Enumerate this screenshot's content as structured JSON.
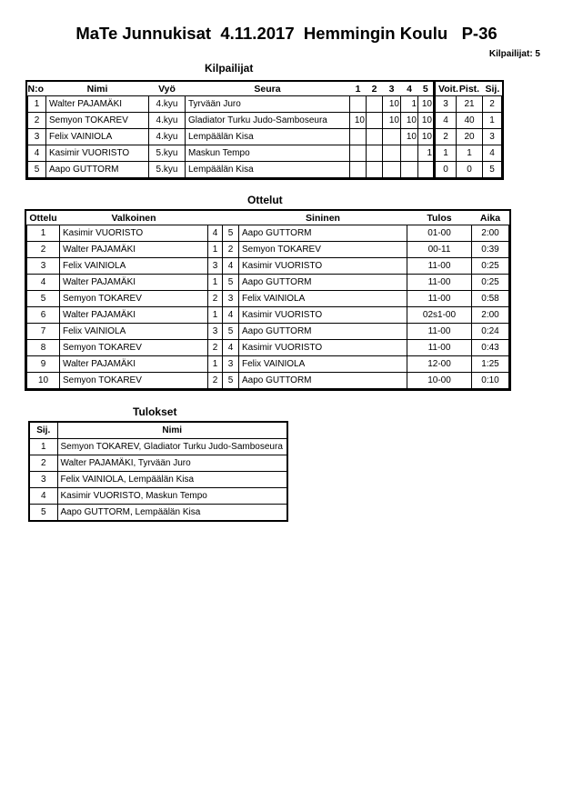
{
  "title": "MaTe Junnukisat  4.11.2017  Hemmingin Koulu   P-36",
  "competitor_count": "Kilpailijat: 5",
  "competitors": {
    "heading": "Kilpailijat",
    "headers": [
      "N:o",
      "Nimi",
      "Vyö",
      "Seura",
      "1",
      "2",
      "3",
      "4",
      "5",
      "Voit.",
      "Pist.",
      "Sij."
    ],
    "rows": [
      {
        "no": "1",
        "name": "Walter PAJAMÄKI",
        "belt": "4.kyu",
        "club": "Tyrvään Juro",
        "s1": "",
        "s2": "",
        "s3": "10",
        "s4": "1",
        "s5": "10",
        "wins": "3",
        "points": "21",
        "rank": "2"
      },
      {
        "no": "2",
        "name": "Semyon TOKAREV",
        "belt": "4.kyu",
        "club": "Gladiator Turku Judo-Samboseura",
        "s1": "10",
        "s2": "",
        "s3": "10",
        "s4": "10",
        "s5": "10",
        "wins": "4",
        "points": "40",
        "rank": "1"
      },
      {
        "no": "3",
        "name": "Felix VAINIOLA",
        "belt": "4.kyu",
        "club": "Lempäälän Kisa",
        "s1": "",
        "s2": "",
        "s3": "",
        "s4": "10",
        "s5": "10",
        "wins": "2",
        "points": "20",
        "rank": "3"
      },
      {
        "no": "4",
        "name": "Kasimir VUORISTO",
        "belt": "5.kyu",
        "club": "Maskun Tempo",
        "s1": "",
        "s2": "",
        "s3": "",
        "s4": "",
        "s5": "1",
        "wins": "1",
        "points": "1",
        "rank": "4"
      },
      {
        "no": "5",
        "name": "Aapo GUTTORM",
        "belt": "5.kyu",
        "club": "Lempäälän Kisa",
        "s1": "",
        "s2": "",
        "s3": "",
        "s4": "",
        "s5": "",
        "wins": "0",
        "points": "0",
        "rank": "5"
      }
    ]
  },
  "matches": {
    "heading": "Ottelut",
    "headers": [
      "Ottelu",
      "Valkoinen",
      "Sininen",
      "Tulos",
      "Aika"
    ],
    "rows": [
      {
        "no": "1",
        "white": "Kasimir VUORISTO",
        "wn": "4",
        "bn": "5",
        "blue": "Aapo GUTTORM",
        "result": "01-00",
        "time": "2:00"
      },
      {
        "no": "2",
        "white": "Walter PAJAMÄKI",
        "wn": "1",
        "bn": "2",
        "blue": "Semyon TOKAREV",
        "result": "00-11",
        "time": "0:39"
      },
      {
        "no": "3",
        "white": "Felix VAINIOLA",
        "wn": "3",
        "bn": "4",
        "blue": "Kasimir VUORISTO",
        "result": "11-00",
        "time": "0:25"
      },
      {
        "no": "4",
        "white": "Walter PAJAMÄKI",
        "wn": "1",
        "bn": "5",
        "blue": "Aapo GUTTORM",
        "result": "11-00",
        "time": "0:25"
      },
      {
        "no": "5",
        "white": "Semyon TOKAREV",
        "wn": "2",
        "bn": "3",
        "blue": "Felix VAINIOLA",
        "result": "11-00",
        "time": "0:58"
      },
      {
        "no": "6",
        "white": "Walter PAJAMÄKI",
        "wn": "1",
        "bn": "4",
        "blue": "Kasimir VUORISTO",
        "result": "02s1-00",
        "time": "2:00"
      },
      {
        "no": "7",
        "white": "Felix VAINIOLA",
        "wn": "3",
        "bn": "5",
        "blue": "Aapo GUTTORM",
        "result": "11-00",
        "time": "0:24"
      },
      {
        "no": "8",
        "white": "Semyon TOKAREV",
        "wn": "2",
        "bn": "4",
        "blue": "Kasimir VUORISTO",
        "result": "11-00",
        "time": "0:43"
      },
      {
        "no": "9",
        "white": "Walter PAJAMÄKI",
        "wn": "1",
        "bn": "3",
        "blue": "Felix VAINIOLA",
        "result": "12-00",
        "time": "1:25"
      },
      {
        "no": "10",
        "white": "Semyon TOKAREV",
        "wn": "2",
        "bn": "5",
        "blue": "Aapo GUTTORM",
        "result": "10-00",
        "time": "0:10"
      }
    ]
  },
  "results": {
    "heading": "Tulokset",
    "headers": [
      "Sij.",
      "Nimi"
    ],
    "rows": [
      {
        "rank": "1",
        "name": "Semyon TOKAREV, Gladiator Turku Judo-Samboseura"
      },
      {
        "rank": "2",
        "name": "Walter PAJAMÄKI, Tyrvään Juro"
      },
      {
        "rank": "3",
        "name": "Felix VAINIOLA, Lempäälän Kisa"
      },
      {
        "rank": "4",
        "name": "Kasimir VUORISTO, Maskun Tempo"
      },
      {
        "rank": "5",
        "name": "Aapo GUTTORM, Lempäälän Kisa"
      }
    ]
  }
}
